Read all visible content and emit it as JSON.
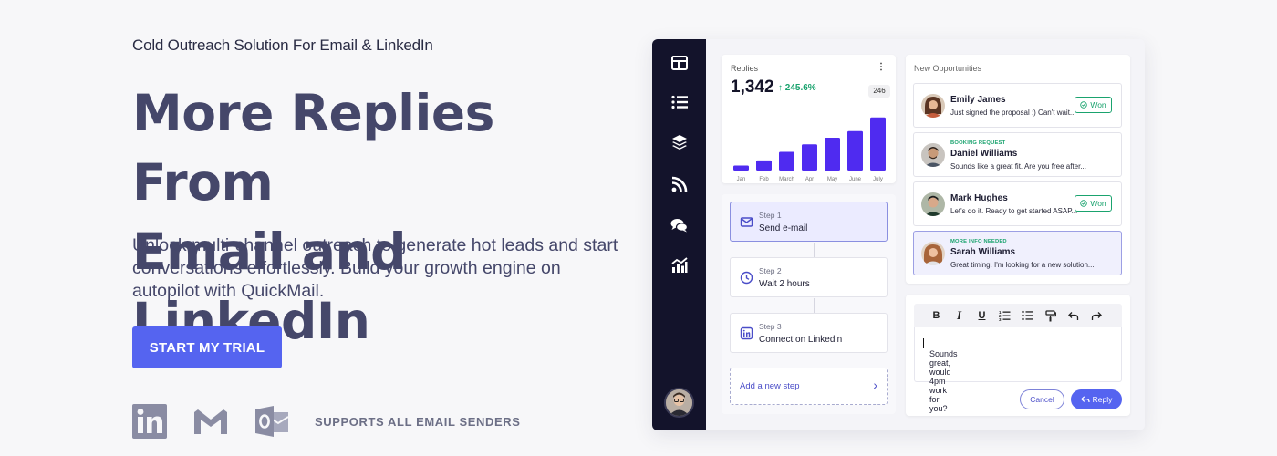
{
  "hero": {
    "eyebrow": "Cold Outreach Solution For Email & LinkedIn",
    "headline_line1": "More Replies From",
    "headline_line2": "Email and LinkedIn",
    "subtext": "Unlock multi-channel outreach to generate hot leads and start conversations effortlessly. Build your growth engine on autopilot with QuickMail.",
    "cta_label": "START MY TRIAL",
    "supports_label": "SUPPORTS ALL EMAIL SENDERS",
    "logos": [
      "linkedin-logo",
      "gmail-logo",
      "outlook-logo"
    ]
  },
  "colors": {
    "brand": "#5564f0",
    "headline": "#45476a",
    "sidebar": "#13132b",
    "success": "#1aa36e"
  },
  "app": {
    "sidebar_icons": [
      "layout-icon",
      "list-icon",
      "layers-icon",
      "rss-icon",
      "chat-icon",
      "analytics-icon"
    ],
    "replies": {
      "title": "Replies",
      "menu": "⋮",
      "value": "1,342",
      "delta": "↑ 245.6%",
      "tooltip": "246"
    },
    "sequence": {
      "steps": [
        {
          "num": "Step 1",
          "label": "Send e-mail",
          "icon": "mail-icon"
        },
        {
          "num": "Step 2",
          "label": "Wait 2 hours",
          "icon": "clock-icon"
        },
        {
          "num": "Step 3",
          "label": "Connect on Linkedin",
          "icon": "linkedin-icon"
        }
      ],
      "add_step": "Add a new step",
      "add_chevron": "›"
    },
    "opportunities": {
      "title": "New Opportunities",
      "items": [
        {
          "name": "Emily James",
          "message": "Just signed the proposal :) Can't wait...",
          "badge": "Won",
          "tag": ""
        },
        {
          "name": "Daniel Williams",
          "message": "Sounds like a great fit. Are you free after...",
          "badge": "",
          "tag": "BOOKING REQUEST"
        },
        {
          "name": "Mark Hughes",
          "message": "Let's do it. Ready to get started ASAP...",
          "badge": "Won",
          "tag": ""
        },
        {
          "name": "Sarah Williams",
          "message": "Great timing. I'm looking for a new solution...",
          "badge": "",
          "tag": "MORE INFO NEEDED"
        }
      ]
    },
    "editor": {
      "toolbar": [
        "B",
        "I",
        "U",
        "ordered-list-icon",
        "bullet-list-icon",
        "format-paint-icon",
        "undo-icon",
        "redo-icon"
      ],
      "draft": "Sounds great, would 4pm work for you?",
      "cancel_label": "Cancel",
      "reply_label": "Reply"
    }
  },
  "chart_data": {
    "type": "bar",
    "title": "Replies",
    "categories": [
      "Jan",
      "Feb",
      "March",
      "Apr",
      "May",
      "June",
      "July"
    ],
    "values": [
      10,
      20,
      37,
      52,
      65,
      78,
      105
    ],
    "ylim": [
      0,
      110
    ],
    "xlabel": "",
    "ylabel": "",
    "grid": false,
    "color": "#4f2bf0"
  }
}
